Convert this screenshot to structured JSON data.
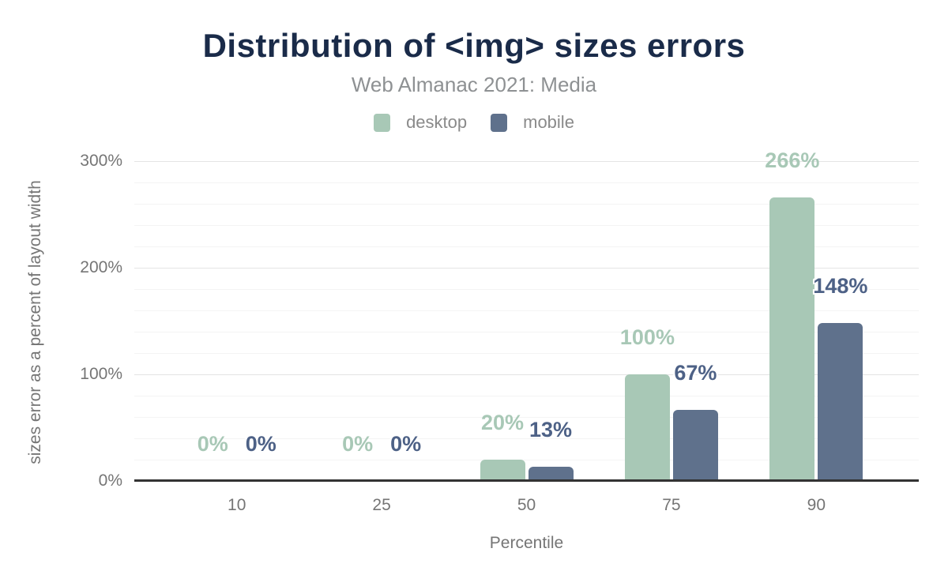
{
  "header": {
    "title": "Distribution of <img> sizes errors",
    "subtitle": "Web Almanac 2021: Media"
  },
  "legend": [
    {
      "label": "desktop",
      "color": "#a8c8b6"
    },
    {
      "label": "mobile",
      "color": "#5f718c"
    }
  ],
  "chart_data": {
    "type": "bar",
    "title": "Distribution of <img> sizes errors",
    "subtitle": "Web Almanac 2021: Media",
    "categories": [
      "10",
      "25",
      "50",
      "75",
      "90"
    ],
    "series": [
      {
        "name": "desktop",
        "color": "#a8c8b6",
        "label_color": "#a8c8b6",
        "values": [
          0,
          0,
          20,
          100,
          266
        ],
        "labels": [
          "0%",
          "0%",
          "20%",
          "100%",
          "266%"
        ]
      },
      {
        "name": "mobile",
        "color": "#5f718c",
        "label_color": "#4d6186",
        "values": [
          0,
          0,
          13,
          67,
          148
        ],
        "labels": [
          "0%",
          "0%",
          "13%",
          "67%",
          "148%"
        ]
      }
    ],
    "xlabel": "Percentile",
    "ylabel": "sizes error as a percent of layout width",
    "ylim": [
      0,
      300
    ],
    "yticks": [
      {
        "value": 0,
        "label": "0%"
      },
      {
        "value": 100,
        "label": "100%"
      },
      {
        "value": 200,
        "label": "200%"
      },
      {
        "value": 300,
        "label": "300%"
      }
    ],
    "grid": {
      "major_interval": 100,
      "minor_interval": 20,
      "minor_color": "#f4f4f4",
      "major_color": "#e4e4e4"
    },
    "legend_position": "top",
    "axis_line_color": "#333333"
  },
  "colors": {
    "title": "#1a2b49",
    "subtitle": "#8e9193",
    "axis_text": "#757575",
    "desktop": "#a8c8b6",
    "mobile": "#5f718c",
    "mobile_label": "#4d6186"
  }
}
